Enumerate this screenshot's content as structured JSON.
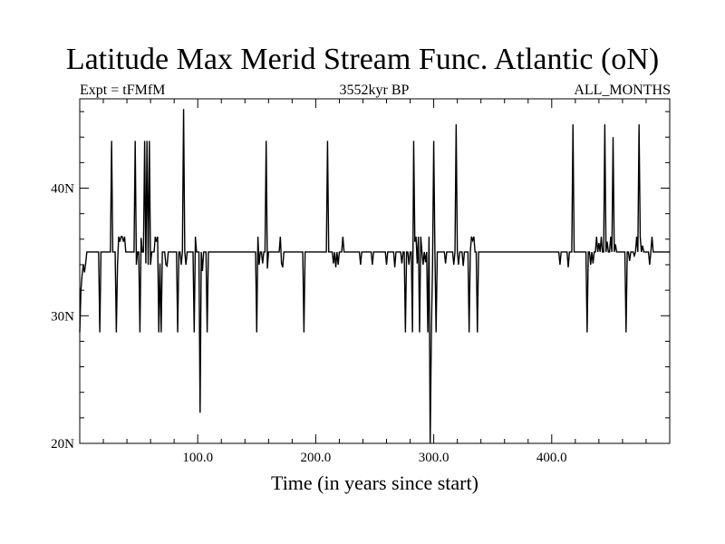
{
  "chart_data": {
    "type": "line",
    "title": "Latitude Max Merid Stream Func. Atlantic (oN)",
    "subtitle_left": "Expt = tFMfM",
    "subtitle_center": "3552kyr BP",
    "subtitle_right": "ALL_MONTHS",
    "xlabel": "Time (in years since start)",
    "ylabel": "",
    "xlim": [
      0,
      500
    ],
    "ylim": [
      20,
      47
    ],
    "x_ticks": [
      100,
      200,
      300,
      400
    ],
    "x_tick_labels": [
      "100.0",
      "200.0",
      "300.0",
      "400.0"
    ],
    "y_ticks": [
      20,
      30,
      40
    ],
    "y_tick_labels": [
      "20N",
      "30N",
      "40N"
    ],
    "grid": false,
    "baseline": 35,
    "series": [
      {
        "color": "#000000",
        "events": [
          [
            0,
            28.7
          ],
          [
            1,
            32.0
          ],
          [
            2,
            33.2
          ],
          [
            3,
            34.0
          ],
          [
            4,
            33.4
          ],
          [
            5,
            34.1
          ],
          [
            17,
            28.7
          ],
          [
            27,
            43.7
          ],
          [
            31,
            28.7
          ],
          [
            32,
            34.0
          ],
          [
            33,
            36.2
          ],
          [
            34,
            35.8
          ],
          [
            35,
            36.2
          ],
          [
            36,
            36.2
          ],
          [
            37,
            35.8
          ],
          [
            38,
            36.2
          ],
          [
            47,
            43.7
          ],
          [
            48,
            34.0
          ],
          [
            51,
            28.7
          ],
          [
            52,
            36.1
          ],
          [
            55,
            43.7
          ],
          [
            56,
            34.1
          ],
          [
            57,
            43.7
          ],
          [
            58,
            34.0
          ],
          [
            59,
            43.7
          ],
          [
            60,
            34.0
          ],
          [
            64,
            36.2
          ],
          [
            65,
            35.8
          ],
          [
            66,
            36.2
          ],
          [
            67,
            28.7
          ],
          [
            68,
            34.1
          ],
          [
            69,
            28.7
          ],
          [
            73,
            34.0
          ],
          [
            74,
            33.9
          ],
          [
            83,
            28.7
          ],
          [
            86,
            34.0
          ],
          [
            88,
            46.2
          ],
          [
            90,
            34.0
          ],
          [
            97,
            28.7
          ],
          [
            98,
            36.2
          ],
          [
            102,
            22.4
          ],
          [
            104,
            33.5
          ],
          [
            108,
            28.7
          ],
          [
            150,
            28.7
          ],
          [
            151,
            36.2
          ],
          [
            152,
            34.0
          ],
          [
            155,
            34.1
          ],
          [
            158,
            43.7
          ],
          [
            159,
            33.7
          ],
          [
            170,
            36.2
          ],
          [
            171,
            34.1
          ],
          [
            172,
            33.8
          ],
          [
            190,
            28.7
          ],
          [
            210,
            43.7
          ],
          [
            215,
            34.1
          ],
          [
            217,
            33.8
          ],
          [
            219,
            34.0
          ],
          [
            223,
            36.2
          ],
          [
            238,
            34.0
          ],
          [
            248,
            34.0
          ],
          [
            260,
            34.0
          ],
          [
            267,
            33.8
          ],
          [
            273,
            34.1
          ],
          [
            276,
            28.7
          ],
          [
            279,
            34.0
          ],
          [
            282,
            28.7
          ],
          [
            283,
            43.7
          ],
          [
            284,
            35.8
          ],
          [
            285,
            36.2
          ],
          [
            286,
            34.1
          ],
          [
            287,
            36.2
          ],
          [
            288,
            28.7
          ],
          [
            289,
            36.2
          ],
          [
            291,
            34.0
          ],
          [
            293,
            34.2
          ],
          [
            295,
            28.7
          ],
          [
            296,
            36.2
          ],
          [
            297,
            20.0
          ],
          [
            298,
            28.7
          ],
          [
            299,
            34.0
          ],
          [
            300,
            43.7
          ],
          [
            302,
            28.7
          ],
          [
            310,
            34.1
          ],
          [
            317,
            34.0
          ],
          [
            319,
            45.0
          ],
          [
            321,
            34.0
          ],
          [
            325,
            33.9
          ],
          [
            330,
            28.7
          ],
          [
            332,
            36.2
          ],
          [
            333,
            35.9
          ],
          [
            334,
            36.2
          ],
          [
            337,
            28.7
          ],
          [
            407,
            34.0
          ],
          [
            414,
            33.8
          ],
          [
            418,
            45.0
          ],
          [
            430,
            28.7
          ],
          [
            433,
            34.0
          ],
          [
            435,
            34.1
          ],
          [
            438,
            36.2
          ],
          [
            440,
            35.7
          ],
          [
            442,
            36.2
          ],
          [
            445,
            45.0
          ],
          [
            447,
            35.8
          ],
          [
            450,
            36.2
          ],
          [
            452,
            44.0
          ],
          [
            454,
            35.6
          ],
          [
            463,
            28.7
          ],
          [
            466,
            34.3
          ],
          [
            470,
            34.7
          ],
          [
            472,
            36.2
          ],
          [
            474,
            45.0
          ],
          [
            475,
            36.2
          ],
          [
            477,
            35.5
          ],
          [
            483,
            34.0
          ],
          [
            485,
            36.2
          ]
        ]
      }
    ]
  }
}
